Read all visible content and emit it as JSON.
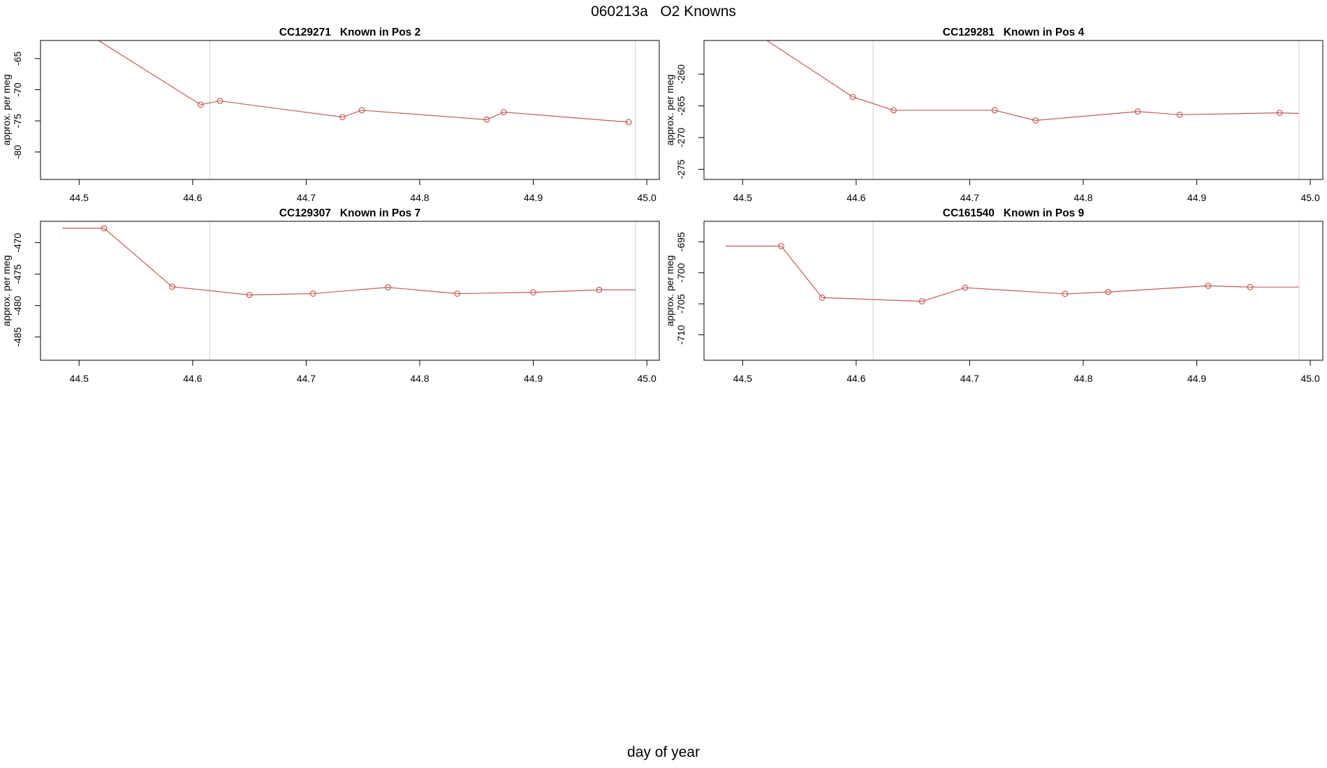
{
  "figure": {
    "main_title": "060213a   O2 Knowns",
    "shared_xlabel": "day of year",
    "background": "#ffffff",
    "series_color": "#c65a55",
    "guide_color": "#d5d5d5",
    "axis_color": "#000000"
  },
  "chart_data": [
    {
      "type": "line",
      "title": "CC129271   Known in Pos 2",
      "ylabel": "approx. per meg",
      "xlabel": "day of year",
      "xlim": [
        44.466,
        45.011
      ],
      "ylim": [
        -84.4,
        -62.1
      ],
      "xticks": [
        44.5,
        44.6,
        44.7,
        44.8,
        44.9,
        45.0
      ],
      "xtick_labels": [
        "44.5",
        "44.6",
        "44.7",
        "44.8",
        "44.9",
        "45.0"
      ],
      "yticks": [
        -80,
        -75,
        -70,
        -65
      ],
      "guide_lines_x": [
        44.615,
        44.99
      ],
      "grid": false,
      "legend": null,
      "points": [
        {
          "x": 44.49,
          "y": -59.0,
          "marker": false
        },
        {
          "x": 44.607,
          "y": -72.4,
          "marker": true
        },
        {
          "x": 44.624,
          "y": -71.8,
          "marker": true
        },
        {
          "x": 44.732,
          "y": -74.4,
          "marker": true
        },
        {
          "x": 44.749,
          "y": -73.3,
          "marker": true
        },
        {
          "x": 44.859,
          "y": -74.8,
          "marker": true
        },
        {
          "x": 44.874,
          "y": -73.6,
          "marker": true
        },
        {
          "x": 44.984,
          "y": -75.2,
          "marker": true
        }
      ]
    },
    {
      "type": "line",
      "title": "CC129281   Known in Pos 4",
      "ylabel": "approx. per meg",
      "xlabel": "day of year",
      "xlim": [
        44.466,
        45.011
      ],
      "ylim": [
        -276.6,
        -254.7
      ],
      "xticks": [
        44.5,
        44.6,
        44.7,
        44.8,
        44.9,
        45.0
      ],
      "xtick_labels": [
        "44.5",
        "44.6",
        "44.7",
        "44.8",
        "44.9",
        "45.0"
      ],
      "yticks": [
        -275,
        -270,
        -265,
        -260
      ],
      "guide_lines_x": [
        44.615,
        44.99
      ],
      "grid": false,
      "legend": null,
      "points": [
        {
          "x": 44.49,
          "y": -251.0,
          "marker": false
        },
        {
          "x": 44.597,
          "y": -263.6,
          "marker": true
        },
        {
          "x": 44.633,
          "y": -265.7,
          "marker": true
        },
        {
          "x": 44.722,
          "y": -265.7,
          "marker": true
        },
        {
          "x": 44.758,
          "y": -267.3,
          "marker": true
        },
        {
          "x": 44.848,
          "y": -265.9,
          "marker": true
        },
        {
          "x": 44.885,
          "y": -266.4,
          "marker": true
        },
        {
          "x": 44.973,
          "y": -266.1,
          "marker": true
        },
        {
          "x": 44.99,
          "y": -266.2,
          "marker": false
        }
      ]
    },
    {
      "type": "line",
      "title": "CC129307   Known in Pos 7",
      "ylabel": "approx. per meg",
      "xlabel": "day of year",
      "xlim": [
        44.466,
        45.011
      ],
      "ylim": [
        -488.7,
        -466.6
      ],
      "xticks": [
        44.5,
        44.6,
        44.7,
        44.8,
        44.9,
        45.0
      ],
      "xtick_labels": [
        "44.5",
        "44.6",
        "44.7",
        "44.8",
        "44.9",
        "45.0"
      ],
      "yticks": [
        -485,
        -480,
        -475,
        -470
      ],
      "guide_lines_x": [
        44.615,
        44.99
      ],
      "grid": false,
      "legend": null,
      "points": [
        {
          "x": 44.485,
          "y": -467.7,
          "marker": false
        },
        {
          "x": 44.522,
          "y": -467.7,
          "marker": true
        },
        {
          "x": 44.582,
          "y": -477.0,
          "marker": true
        },
        {
          "x": 44.65,
          "y": -478.3,
          "marker": true
        },
        {
          "x": 44.706,
          "y": -478.1,
          "marker": true
        },
        {
          "x": 44.772,
          "y": -477.1,
          "marker": true
        },
        {
          "x": 44.833,
          "y": -478.1,
          "marker": true
        },
        {
          "x": 44.9,
          "y": -477.9,
          "marker": true
        },
        {
          "x": 44.958,
          "y": -477.5,
          "marker": true
        },
        {
          "x": 44.99,
          "y": -477.5,
          "marker": false
        }
      ]
    },
    {
      "type": "line",
      "title": "CC161540   Known in Pos 9",
      "ylabel": "approx. per meg",
      "xlabel": "day of year",
      "xlim": [
        44.466,
        45.011
      ],
      "ylim": [
        -714.1,
        -691.7
      ],
      "xticks": [
        44.5,
        44.6,
        44.7,
        44.8,
        44.9,
        45.0
      ],
      "xtick_labels": [
        "44.5",
        "44.6",
        "44.7",
        "44.8",
        "44.9",
        "45.0"
      ],
      "yticks": [
        -710,
        -705,
        -700,
        -695
      ],
      "guide_lines_x": [
        44.615,
        44.99
      ],
      "grid": false,
      "legend": null,
      "points": [
        {
          "x": 44.485,
          "y": -695.7,
          "marker": false
        },
        {
          "x": 44.534,
          "y": -695.7,
          "marker": true
        },
        {
          "x": 44.57,
          "y": -704.0,
          "marker": true
        },
        {
          "x": 44.658,
          "y": -704.6,
          "marker": true
        },
        {
          "x": 44.696,
          "y": -702.4,
          "marker": true
        },
        {
          "x": 44.784,
          "y": -703.4,
          "marker": true
        },
        {
          "x": 44.822,
          "y": -703.1,
          "marker": true
        },
        {
          "x": 44.91,
          "y": -702.1,
          "marker": true
        },
        {
          "x": 44.947,
          "y": -702.3,
          "marker": true
        },
        {
          "x": 44.99,
          "y": -702.3,
          "marker": false
        }
      ]
    }
  ]
}
